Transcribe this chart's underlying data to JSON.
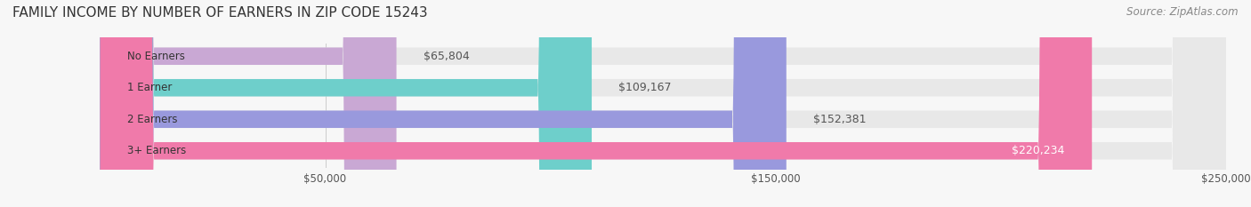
{
  "title": "FAMILY INCOME BY NUMBER OF EARNERS IN ZIP CODE 15243",
  "source": "Source: ZipAtlas.com",
  "categories": [
    "No Earners",
    "1 Earner",
    "2 Earners",
    "3+ Earners"
  ],
  "values": [
    65804,
    109167,
    152381,
    220234
  ],
  "bar_colors": [
    "#c9a8d4",
    "#6ecfcb",
    "#9999dd",
    "#f07aaa"
  ],
  "bar_bg_color": "#f0f0f0",
  "value_labels": [
    "$65,804",
    "$109,167",
    "$152,381",
    "$220,234"
  ],
  "label_colors": [
    "#555555",
    "#555555",
    "#555555",
    "#ffffff"
  ],
  "xlim": [
    0,
    250000
  ],
  "xticks": [
    50000,
    150000,
    250000
  ],
  "xtick_labels": [
    "$50,000",
    "$150,000",
    "$250,000"
  ],
  "background_color": "#f7f7f7",
  "bar_height": 0.55,
  "title_fontsize": 11,
  "source_fontsize": 8.5,
  "label_fontsize": 9,
  "category_fontsize": 8.5,
  "xtick_fontsize": 8.5
}
